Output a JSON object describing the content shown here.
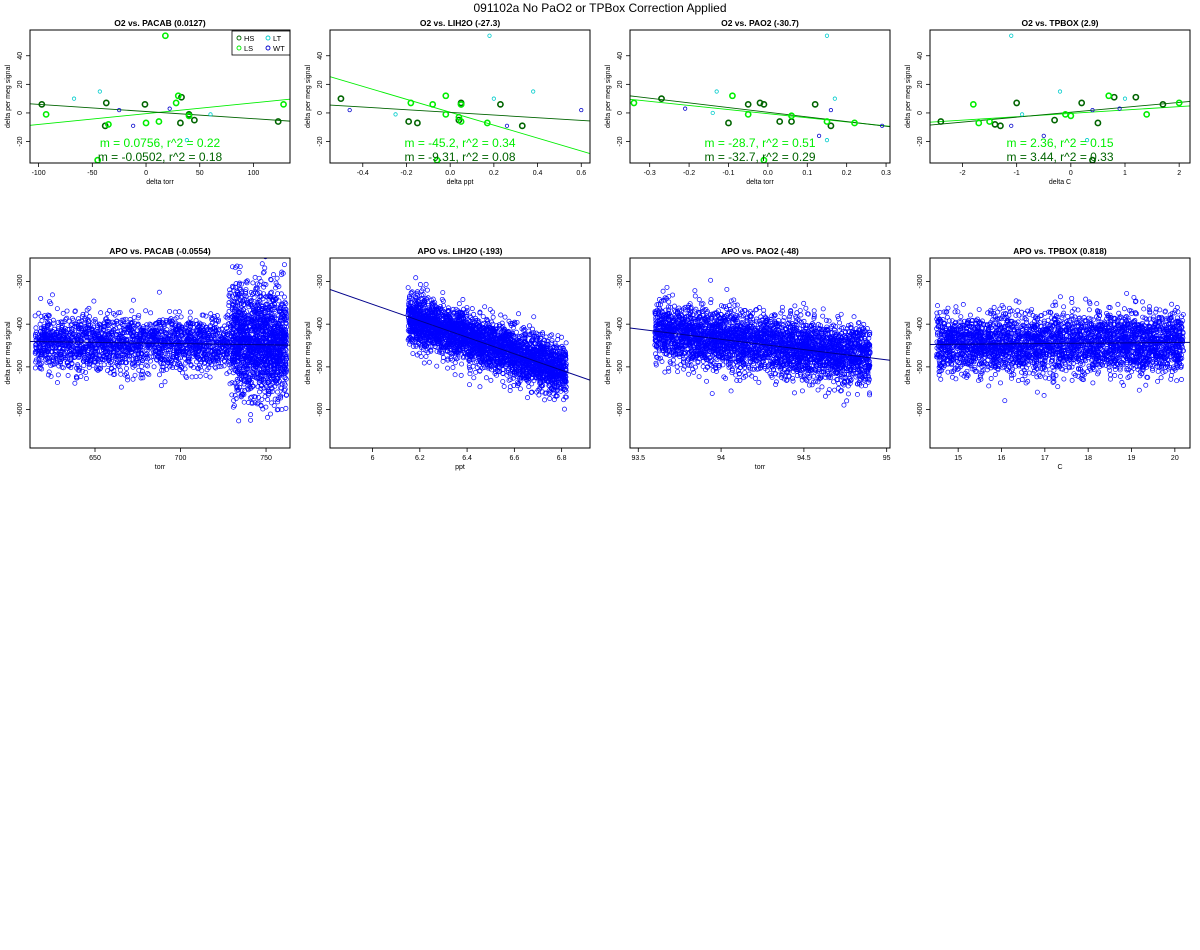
{
  "suptitle": "091102a   No PaO2 or TPBox Correction Applied",
  "colors": {
    "HS": "#006400",
    "LS": "#00ee00",
    "LT": "#00cccc",
    "WT": "#0000cc",
    "fit_light": "#00ee00",
    "fit_dark": "#006400",
    "apo": "#0000ff",
    "apo_fit": "#00008b"
  },
  "legend": {
    "entries": [
      {
        "name": "HS",
        "color": "#006400"
      },
      {
        "name": "LT",
        "color": "#00cccc"
      },
      {
        "name": "LS",
        "color": "#00ee00"
      },
      {
        "name": "WT",
        "color": "#0000cc"
      }
    ]
  },
  "chart_data": [
    {
      "type": "scatter",
      "title": "O2 vs. PACAB (0.0127)",
      "xlabel": "delta torr",
      "ylabel": "delta per meg signal",
      "xlim": [
        -108,
        134
      ],
      "ylim": [
        -35,
        58
      ],
      "xticks": [
        -100,
        -50,
        0,
        50,
        100
      ],
      "yticks": [
        -20,
        0,
        20,
        40
      ],
      "show_legend": true,
      "series": [
        {
          "name": "HS",
          "x": [
            -97,
            -37,
            -38,
            -1,
            32,
            33,
            40,
            45,
            123
          ],
          "y": [
            6,
            7,
            -9,
            6,
            -7,
            11,
            -1,
            -5,
            -6
          ]
        },
        {
          "name": "LS",
          "x": [
            -93,
            -35,
            -45,
            18,
            28,
            30,
            40,
            128,
            0,
            12
          ],
          "y": [
            -1,
            -8,
            -33,
            54,
            7,
            12,
            -2,
            6,
            -7,
            -6
          ]
        },
        {
          "name": "LT",
          "x": [
            -67,
            -43,
            60,
            38
          ],
          "y": [
            10,
            15,
            -1,
            -19
          ]
        },
        {
          "name": "WT",
          "x": [
            -25,
            -12,
            22
          ],
          "y": [
            2,
            -9,
            3
          ]
        }
      ],
      "fits": [
        {
          "m": 0.0756,
          "b": -0.5,
          "color": "#00ee00",
          "label": "m = 0.0756, r^2 = 0.22"
        },
        {
          "m": -0.0502,
          "b": 1.0,
          "color": "#006400",
          "label": "m = -0.0502, r^2 = 0.18"
        }
      ]
    },
    {
      "type": "scatter",
      "title": "O2 vs. LIH2O (-27.3)",
      "xlabel": "delta ppt",
      "ylabel": "delta per meg signal",
      "xlim": [
        -0.55,
        0.64
      ],
      "ylim": [
        -35,
        58
      ],
      "xticks": [
        -0.4,
        -0.2,
        0.0,
        0.2,
        0.4,
        0.6
      ],
      "yticks": [
        -20,
        0,
        20,
        40
      ],
      "series": [
        {
          "name": "HS",
          "x": [
            -0.5,
            -0.19,
            -0.15,
            0.05,
            0.05,
            0.23,
            0.33,
            0.04
          ],
          "y": [
            10,
            -6,
            -7,
            7,
            6,
            6,
            -9,
            -5
          ]
        },
        {
          "name": "LS",
          "x": [
            -0.18,
            -0.08,
            -0.02,
            -0.02,
            0.04,
            0.05,
            0.05,
            0.17,
            -0.06
          ],
          "y": [
            7,
            6,
            12,
            -1,
            -3,
            -6,
            6,
            -7,
            -33
          ]
        },
        {
          "name": "LT",
          "x": [
            -0.25,
            0.2,
            0.38,
            0.18
          ],
          "y": [
            -1,
            10,
            15,
            54
          ]
        },
        {
          "name": "WT",
          "x": [
            -0.46,
            0.6,
            0.26
          ],
          "y": [
            2,
            2,
            -9
          ]
        }
      ],
      "fits": [
        {
          "m": -45.2,
          "b": 0.5,
          "color": "#00ee00",
          "label": "m = -45.2, r^2 = 0.34"
        },
        {
          "m": -9.31,
          "b": 0.4,
          "color": "#006400",
          "label": "m = -9.31, r^2 = 0.08"
        }
      ]
    },
    {
      "type": "scatter",
      "title": "O2 vs. PAO2 (-30.7)",
      "xlabel": "delta torr",
      "ylabel": "delta per meg signal",
      "xlim": [
        -0.35,
        0.31
      ],
      "ylim": [
        -35,
        58
      ],
      "xticks": [
        -0.3,
        -0.2,
        -0.1,
        0.0,
        0.1,
        0.2,
        0.3
      ],
      "yticks": [
        -20,
        0,
        20,
        40
      ],
      "series": [
        {
          "name": "HS",
          "x": [
            -0.27,
            -0.1,
            -0.05,
            -0.02,
            0.03,
            0.06,
            0.12,
            0.16,
            -0.01
          ],
          "y": [
            10,
            -7,
            6,
            7,
            -6,
            -6,
            6,
            -9,
            6
          ]
        },
        {
          "name": "LS",
          "x": [
            -0.34,
            -0.05,
            -0.09,
            0.06,
            0.15,
            0.22,
            -0.01
          ],
          "y": [
            7,
            -1,
            12,
            -2,
            -6,
            -7,
            -33
          ]
        },
        {
          "name": "LT",
          "x": [
            -0.13,
            -0.14,
            0.17,
            0.15,
            0.15
          ],
          "y": [
            15,
            0,
            10,
            54,
            -19
          ]
        },
        {
          "name": "WT",
          "x": [
            -0.21,
            0.16,
            0.13,
            0.29
          ],
          "y": [
            3,
            2,
            -16,
            -9
          ]
        }
      ],
      "fits": [
        {
          "m": -28.7,
          "b": -0.5,
          "color": "#00ee00",
          "label": "m = -28.7, r^2 = 0.51"
        },
        {
          "m": -32.7,
          "b": 0.5,
          "color": "#006400",
          "label": "m = -32.7, r^2 = 0.29"
        }
      ]
    },
    {
      "type": "scatter",
      "title": "O2 vs. TPBOX (2.9)",
      "xlabel": "delta C",
      "ylabel": "delta per meg signal",
      "xlim": [
        -2.6,
        2.2
      ],
      "ylim": [
        -35,
        58
      ],
      "xticks": [
        -2,
        -1,
        0,
        1,
        2
      ],
      "yticks": [
        -20,
        0,
        20,
        40
      ],
      "series": [
        {
          "name": "HS",
          "x": [
            -2.4,
            -1.0,
            -0.3,
            0.2,
            0.5,
            0.8,
            1.2,
            1.7,
            -1.3,
            -1.4,
            0.4
          ],
          "y": [
            -6,
            7,
            -5,
            7,
            -7,
            11,
            11,
            6,
            -9,
            -8,
            -33
          ]
        },
        {
          "name": "LS",
          "x": [
            -1.8,
            -1.7,
            -1.5,
            0.0,
            0.7,
            1.4,
            2.0,
            -0.1
          ],
          "y": [
            6,
            -7,
            -6,
            -2,
            12,
            -1,
            7,
            -1
          ]
        },
        {
          "name": "LT",
          "x": [
            -1.1,
            -0.2,
            -0.9,
            1.0,
            0.3
          ],
          "y": [
            54,
            15,
            -1,
            10,
            -19
          ]
        },
        {
          "name": "WT",
          "x": [
            -1.1,
            -0.5,
            0.4,
            0.9
          ],
          "y": [
            -9,
            -16,
            2,
            3
          ]
        }
      ],
      "fits": [
        {
          "m": 2.36,
          "b": -0.3,
          "color": "#00ee00",
          "label": "m = 2.36, r^2 = 0.15"
        },
        {
          "m": 3.44,
          "b": 0.5,
          "color": "#006400",
          "label": "m = 3.44, r^2 = 0.33"
        }
      ]
    },
    {
      "type": "scatter",
      "title": "APO vs. PACAB (-0.0554)",
      "xlabel": "torr",
      "ylabel": "delta per meg signal",
      "xlim": [
        612,
        764
      ],
      "ylim": [
        -690,
        -245
      ],
      "xticks": [
        650,
        700,
        750
      ],
      "yticks": [
        -600,
        -500,
        -400,
        -300
      ],
      "cloud": {
        "n": 2600,
        "x_range": [
          615,
          762
        ],
        "y_center": -445,
        "y_spread": 32,
        "seed": 11,
        "extra": {
          "x_range": [
            730,
            762
          ],
          "y_center": -440,
          "y_spread": 70,
          "n": 900
        }
      },
      "fits": [
        {
          "m": -0.0554,
          "anchor_x": 690,
          "anchor_y": -445,
          "color": "#00008b"
        }
      ]
    },
    {
      "type": "scatter",
      "title": "APO vs. LIH2O (-193)",
      "xlabel": "ppt",
      "ylabel": "delta per meg signal",
      "xlim": [
        5.82,
        6.92
      ],
      "ylim": [
        -690,
        -245
      ],
      "xticks": [
        6.0,
        6.2,
        6.4,
        6.6,
        6.8
      ],
      "yticks": [
        -600,
        -500,
        -400,
        -300
      ],
      "cloud": {
        "n": 3200,
        "x_range": [
          6.15,
          6.82
        ],
        "slope": -193,
        "y_center": -450,
        "x_center": 6.5,
        "y_spread": 30,
        "seed": 23
      },
      "fits": [
        {
          "m": -193,
          "anchor_x": 6.5,
          "anchor_y": -450,
          "color": "#00008b"
        }
      ]
    },
    {
      "type": "scatter",
      "title": "APO vs. PAO2 (-48)",
      "xlabel": "torr",
      "ylabel": "delta per meg signal",
      "xlim": [
        93.45,
        95.02
      ],
      "ylim": [
        -690,
        -245
      ],
      "xticks": [
        93.5,
        94.0,
        94.5,
        95.0
      ],
      "yticks": [
        -600,
        -500,
        -400,
        -300
      ],
      "cloud": {
        "n": 3400,
        "x_range": [
          93.6,
          94.9
        ],
        "slope": -48,
        "y_center": -445,
        "x_center": 94.2,
        "y_spread": 35,
        "seed": 37
      },
      "fits": [
        {
          "m": -48,
          "anchor_x": 94.2,
          "anchor_y": -445,
          "color": "#00008b"
        }
      ]
    },
    {
      "type": "scatter",
      "title": "APO vs. TPBOX (0.818)",
      "xlabel": "C",
      "ylabel": "delta per meg signal",
      "xlim": [
        14.35,
        20.35
      ],
      "ylim": [
        -690,
        -245
      ],
      "xticks": [
        15,
        16,
        17,
        18,
        19,
        20
      ],
      "yticks": [
        -600,
        -500,
        -400,
        -300
      ],
      "cloud": {
        "n": 3200,
        "x_range": [
          14.5,
          20.2
        ],
        "slope": 0.818,
        "y_center": -445,
        "x_center": 17.5,
        "y_spread": 35,
        "seed": 53
      },
      "fits": [
        {
          "m": 0.818,
          "anchor_x": 17.5,
          "anchor_y": -445,
          "color": "#00008b"
        }
      ]
    }
  ]
}
